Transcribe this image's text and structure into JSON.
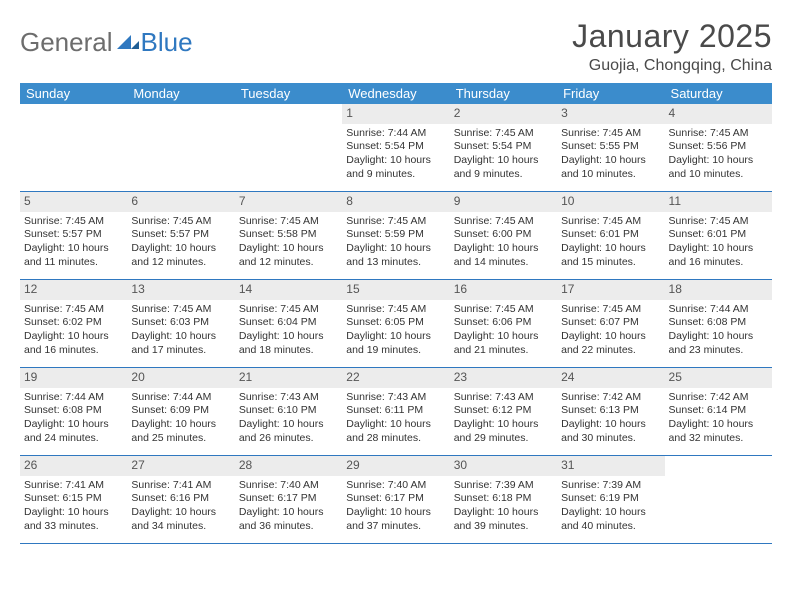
{
  "logo": {
    "general": "General",
    "blue": "Blue"
  },
  "title": "January 2025",
  "location": "Guojia, Chongqing, China",
  "colors": {
    "header_bg": "#3b8ccc",
    "header_text": "#ffffff",
    "daynum_bg": "#ececec",
    "rule": "#2f78c0",
    "logo_gray": "#6d6d6d",
    "logo_blue": "#2f78c0",
    "body_text": "#333333"
  },
  "dow": [
    "Sunday",
    "Monday",
    "Tuesday",
    "Wednesday",
    "Thursday",
    "Friday",
    "Saturday"
  ],
  "weeks": [
    [
      {
        "n": "",
        "t": ""
      },
      {
        "n": "",
        "t": ""
      },
      {
        "n": "",
        "t": ""
      },
      {
        "n": "1",
        "t": "Sunrise: 7:44 AM\nSunset: 5:54 PM\nDaylight: 10 hours and 9 minutes."
      },
      {
        "n": "2",
        "t": "Sunrise: 7:45 AM\nSunset: 5:54 PM\nDaylight: 10 hours and 9 minutes."
      },
      {
        "n": "3",
        "t": "Sunrise: 7:45 AM\nSunset: 5:55 PM\nDaylight: 10 hours and 10 minutes."
      },
      {
        "n": "4",
        "t": "Sunrise: 7:45 AM\nSunset: 5:56 PM\nDaylight: 10 hours and 10 minutes."
      }
    ],
    [
      {
        "n": "5",
        "t": "Sunrise: 7:45 AM\nSunset: 5:57 PM\nDaylight: 10 hours and 11 minutes."
      },
      {
        "n": "6",
        "t": "Sunrise: 7:45 AM\nSunset: 5:57 PM\nDaylight: 10 hours and 12 minutes."
      },
      {
        "n": "7",
        "t": "Sunrise: 7:45 AM\nSunset: 5:58 PM\nDaylight: 10 hours and 12 minutes."
      },
      {
        "n": "8",
        "t": "Sunrise: 7:45 AM\nSunset: 5:59 PM\nDaylight: 10 hours and 13 minutes."
      },
      {
        "n": "9",
        "t": "Sunrise: 7:45 AM\nSunset: 6:00 PM\nDaylight: 10 hours and 14 minutes."
      },
      {
        "n": "10",
        "t": "Sunrise: 7:45 AM\nSunset: 6:01 PM\nDaylight: 10 hours and 15 minutes."
      },
      {
        "n": "11",
        "t": "Sunrise: 7:45 AM\nSunset: 6:01 PM\nDaylight: 10 hours and 16 minutes."
      }
    ],
    [
      {
        "n": "12",
        "t": "Sunrise: 7:45 AM\nSunset: 6:02 PM\nDaylight: 10 hours and 16 minutes."
      },
      {
        "n": "13",
        "t": "Sunrise: 7:45 AM\nSunset: 6:03 PM\nDaylight: 10 hours and 17 minutes."
      },
      {
        "n": "14",
        "t": "Sunrise: 7:45 AM\nSunset: 6:04 PM\nDaylight: 10 hours and 18 minutes."
      },
      {
        "n": "15",
        "t": "Sunrise: 7:45 AM\nSunset: 6:05 PM\nDaylight: 10 hours and 19 minutes."
      },
      {
        "n": "16",
        "t": "Sunrise: 7:45 AM\nSunset: 6:06 PM\nDaylight: 10 hours and 21 minutes."
      },
      {
        "n": "17",
        "t": "Sunrise: 7:45 AM\nSunset: 6:07 PM\nDaylight: 10 hours and 22 minutes."
      },
      {
        "n": "18",
        "t": "Sunrise: 7:44 AM\nSunset: 6:08 PM\nDaylight: 10 hours and 23 minutes."
      }
    ],
    [
      {
        "n": "19",
        "t": "Sunrise: 7:44 AM\nSunset: 6:08 PM\nDaylight: 10 hours and 24 minutes."
      },
      {
        "n": "20",
        "t": "Sunrise: 7:44 AM\nSunset: 6:09 PM\nDaylight: 10 hours and 25 minutes."
      },
      {
        "n": "21",
        "t": "Sunrise: 7:43 AM\nSunset: 6:10 PM\nDaylight: 10 hours and 26 minutes."
      },
      {
        "n": "22",
        "t": "Sunrise: 7:43 AM\nSunset: 6:11 PM\nDaylight: 10 hours and 28 minutes."
      },
      {
        "n": "23",
        "t": "Sunrise: 7:43 AM\nSunset: 6:12 PM\nDaylight: 10 hours and 29 minutes."
      },
      {
        "n": "24",
        "t": "Sunrise: 7:42 AM\nSunset: 6:13 PM\nDaylight: 10 hours and 30 minutes."
      },
      {
        "n": "25",
        "t": "Sunrise: 7:42 AM\nSunset: 6:14 PM\nDaylight: 10 hours and 32 minutes."
      }
    ],
    [
      {
        "n": "26",
        "t": "Sunrise: 7:41 AM\nSunset: 6:15 PM\nDaylight: 10 hours and 33 minutes."
      },
      {
        "n": "27",
        "t": "Sunrise: 7:41 AM\nSunset: 6:16 PM\nDaylight: 10 hours and 34 minutes."
      },
      {
        "n": "28",
        "t": "Sunrise: 7:40 AM\nSunset: 6:17 PM\nDaylight: 10 hours and 36 minutes."
      },
      {
        "n": "29",
        "t": "Sunrise: 7:40 AM\nSunset: 6:17 PM\nDaylight: 10 hours and 37 minutes."
      },
      {
        "n": "30",
        "t": "Sunrise: 7:39 AM\nSunset: 6:18 PM\nDaylight: 10 hours and 39 minutes."
      },
      {
        "n": "31",
        "t": "Sunrise: 7:39 AM\nSunset: 6:19 PM\nDaylight: 10 hours and 40 minutes."
      },
      {
        "n": "",
        "t": ""
      }
    ]
  ]
}
